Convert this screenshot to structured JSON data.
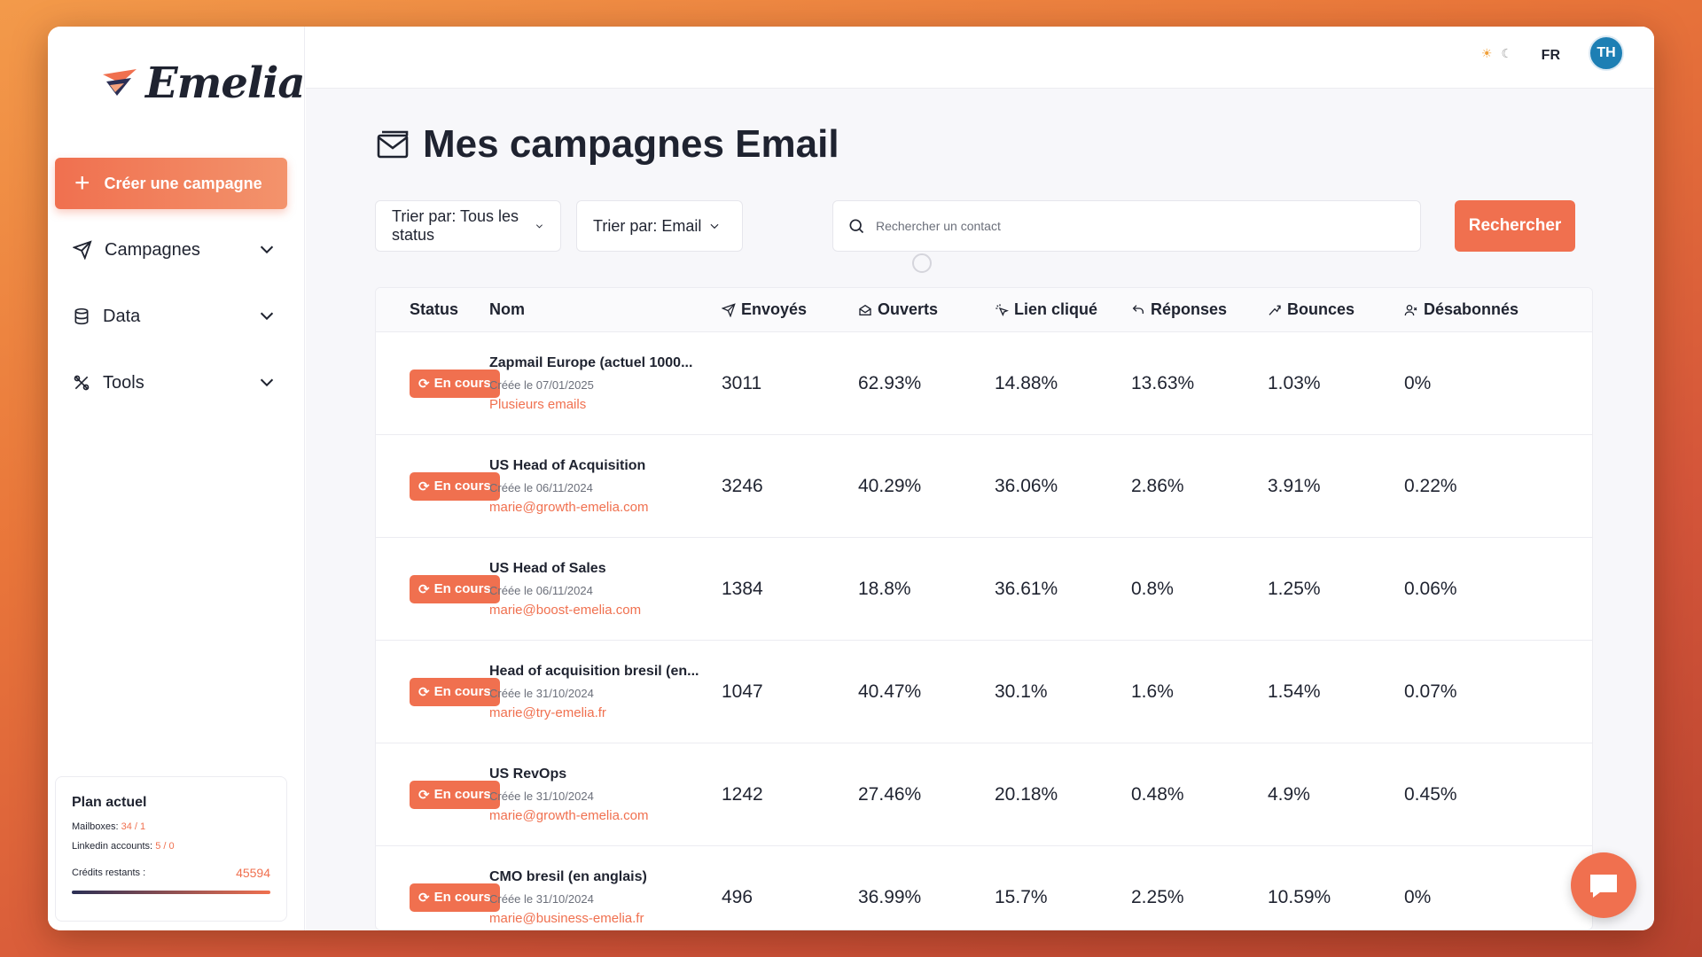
{
  "app": {
    "logo_text": "Emelia"
  },
  "sidebar": {
    "create_label": "Créer une campagne",
    "nav": [
      {
        "label": "Campagnes",
        "icon": "send-icon"
      },
      {
        "label": "Data",
        "icon": "database-icon"
      },
      {
        "label": "Tools",
        "icon": "tools-icon"
      }
    ],
    "plan": {
      "title": "Plan actuel",
      "mailboxes_label": "Mailboxes:",
      "mailboxes_value": "34 / 1",
      "linkedin_label": "Linkedin accounts:",
      "linkedin_value": "5 / 0",
      "credits_label": "Crédits restants :",
      "credits_value": "45594"
    }
  },
  "topbar": {
    "lang": "FR",
    "avatar": "TH"
  },
  "page": {
    "title": "Mes campagnes Email",
    "filter_status": "Trier par: Tous les status",
    "filter_type": "Trier par: Email",
    "search_placeholder": "Rechercher un contact",
    "search_button": "Rechercher"
  },
  "table": {
    "headers": [
      "Status",
      "Nom",
      "Envoyés",
      "Ouverts",
      "Lien cliqué",
      "Réponses",
      "Bounces",
      "Désabonnés"
    ],
    "rows": [
      {
        "status": "En cours",
        "name": "Zapmail Europe (actuel 1000...",
        "created": "Créée le 07/01/2025",
        "sender": "Plusieurs emails",
        "sent": "3011",
        "opened": "62.93%",
        "clicked": "14.88%",
        "replies": "13.63%",
        "bounces": "1.03%",
        "unsub": "0%"
      },
      {
        "status": "En cours",
        "name": "US Head of Acquisition",
        "created": "Créée le 06/11/2024",
        "sender": "marie@growth-emelia.com",
        "sent": "3246",
        "opened": "40.29%",
        "clicked": "36.06%",
        "replies": "2.86%",
        "bounces": "3.91%",
        "unsub": "0.22%"
      },
      {
        "status": "En cours",
        "name": "US Head of Sales",
        "created": "Créée le 06/11/2024",
        "sender": "marie@boost-emelia.com",
        "sent": "1384",
        "opened": "18.8%",
        "clicked": "36.61%",
        "replies": "0.8%",
        "bounces": "1.25%",
        "unsub": "0.06%"
      },
      {
        "status": "En cours",
        "name": "Head of acquisition bresil (en...",
        "created": "Créée le 31/10/2024",
        "sender": "marie@try-emelia.fr",
        "sent": "1047",
        "opened": "40.47%",
        "clicked": "30.1%",
        "replies": "1.6%",
        "bounces": "1.54%",
        "unsub": "0.07%"
      },
      {
        "status": "En cours",
        "name": "US RevOps",
        "created": "Créée le 31/10/2024",
        "sender": "marie@growth-emelia.com",
        "sent": "1242",
        "opened": "27.46%",
        "clicked": "20.18%",
        "replies": "0.48%",
        "bounces": "4.9%",
        "unsub": "0.45%"
      },
      {
        "status": "En cours",
        "name": "CMO bresil (en anglais)",
        "created": "Créée le 31/10/2024",
        "sender": "marie@business-emelia.fr",
        "sent": "496",
        "opened": "36.99%",
        "clicked": "15.7%",
        "replies": "2.25%",
        "bounces": "10.59%",
        "unsub": "0%"
      }
    ]
  },
  "colors": {
    "accent": "#f0704f",
    "avatar": "#1d7fb4",
    "text": "#1f2330"
  }
}
